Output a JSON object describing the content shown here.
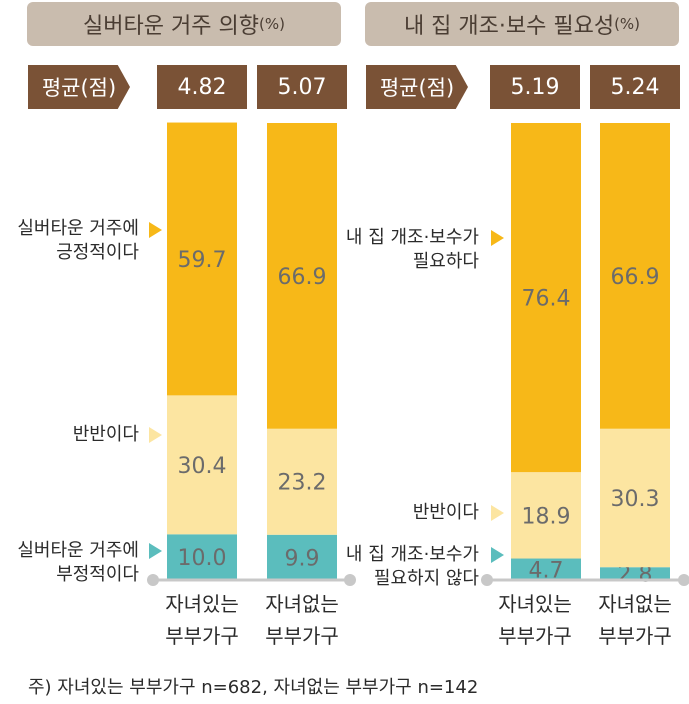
{
  "colors": {
    "positive": "#f7b818",
    "neutral": "#fce5a1",
    "negative": "#5bbdbd",
    "tag": "#7a5236",
    "title_bg": "#c9bcae"
  },
  "left": {
    "title": "실버타운 거주 의향",
    "title_unit": "(%)",
    "avg_label": "평균(점)",
    "legend": {
      "positive_line1": "실버타운 거주에",
      "positive_line2": "긍정적이다",
      "neutral": "반반이다",
      "negative_line1": "실버타운 거주에",
      "negative_line2": "부정적이다"
    },
    "groups": [
      {
        "line1": "자녀있는",
        "line2": "부부가구",
        "avg": "4.82"
      },
      {
        "line1": "자녀없는",
        "line2": "부부가구",
        "avg": "5.07"
      }
    ]
  },
  "right": {
    "title": "내 집 개조·보수 필요성",
    "title_unit": "(%)",
    "avg_label": "평균(점)",
    "legend": {
      "positive_line1": "내 집 개조·보수가",
      "positive_line2": "필요하다",
      "neutral": "반반이다",
      "negative_line1": "내 집 개조·보수가",
      "negative_line2": "필요하지 않다"
    },
    "groups": [
      {
        "line1": "자녀있는",
        "line2": "부부가구",
        "avg": "5.19"
      },
      {
        "line1": "자녀없는",
        "line2": "부부가구",
        "avg": "5.24"
      }
    ]
  },
  "note": "주) 자녀있는 부부가구 n=682, 자녀없는 부부가구 n=142",
  "chart_data": [
    {
      "type": "bar",
      "stacked": true,
      "title": "실버타운 거주 의향(%)",
      "categories": [
        "자녀있는 부부가구",
        "자녀없는 부부가구"
      ],
      "series": [
        {
          "name": "실버타운 거주에 부정적이다",
          "values": [
            10.0,
            9.9
          ]
        },
        {
          "name": "반반이다",
          "values": [
            30.4,
            23.2
          ]
        },
        {
          "name": "실버타운 거주에 긍정적이다",
          "values": [
            59.7,
            66.9
          ]
        }
      ],
      "averages": [
        4.82,
        5.07
      ],
      "ylim": [
        0,
        100
      ]
    },
    {
      "type": "bar",
      "stacked": true,
      "title": "내 집 개조·보수 필요성(%)",
      "categories": [
        "자녀있는 부부가구",
        "자녀없는 부부가구"
      ],
      "series": [
        {
          "name": "내 집 개조·보수가 필요하지 않다",
          "values": [
            4.7,
            2.8
          ]
        },
        {
          "name": "반반이다",
          "values": [
            18.9,
            30.3
          ]
        },
        {
          "name": "내 집 개조·보수가 필요하다",
          "values": [
            76.4,
            66.9
          ]
        }
      ],
      "averages": [
        5.19,
        5.24
      ],
      "ylim": [
        0,
        100
      ]
    }
  ]
}
